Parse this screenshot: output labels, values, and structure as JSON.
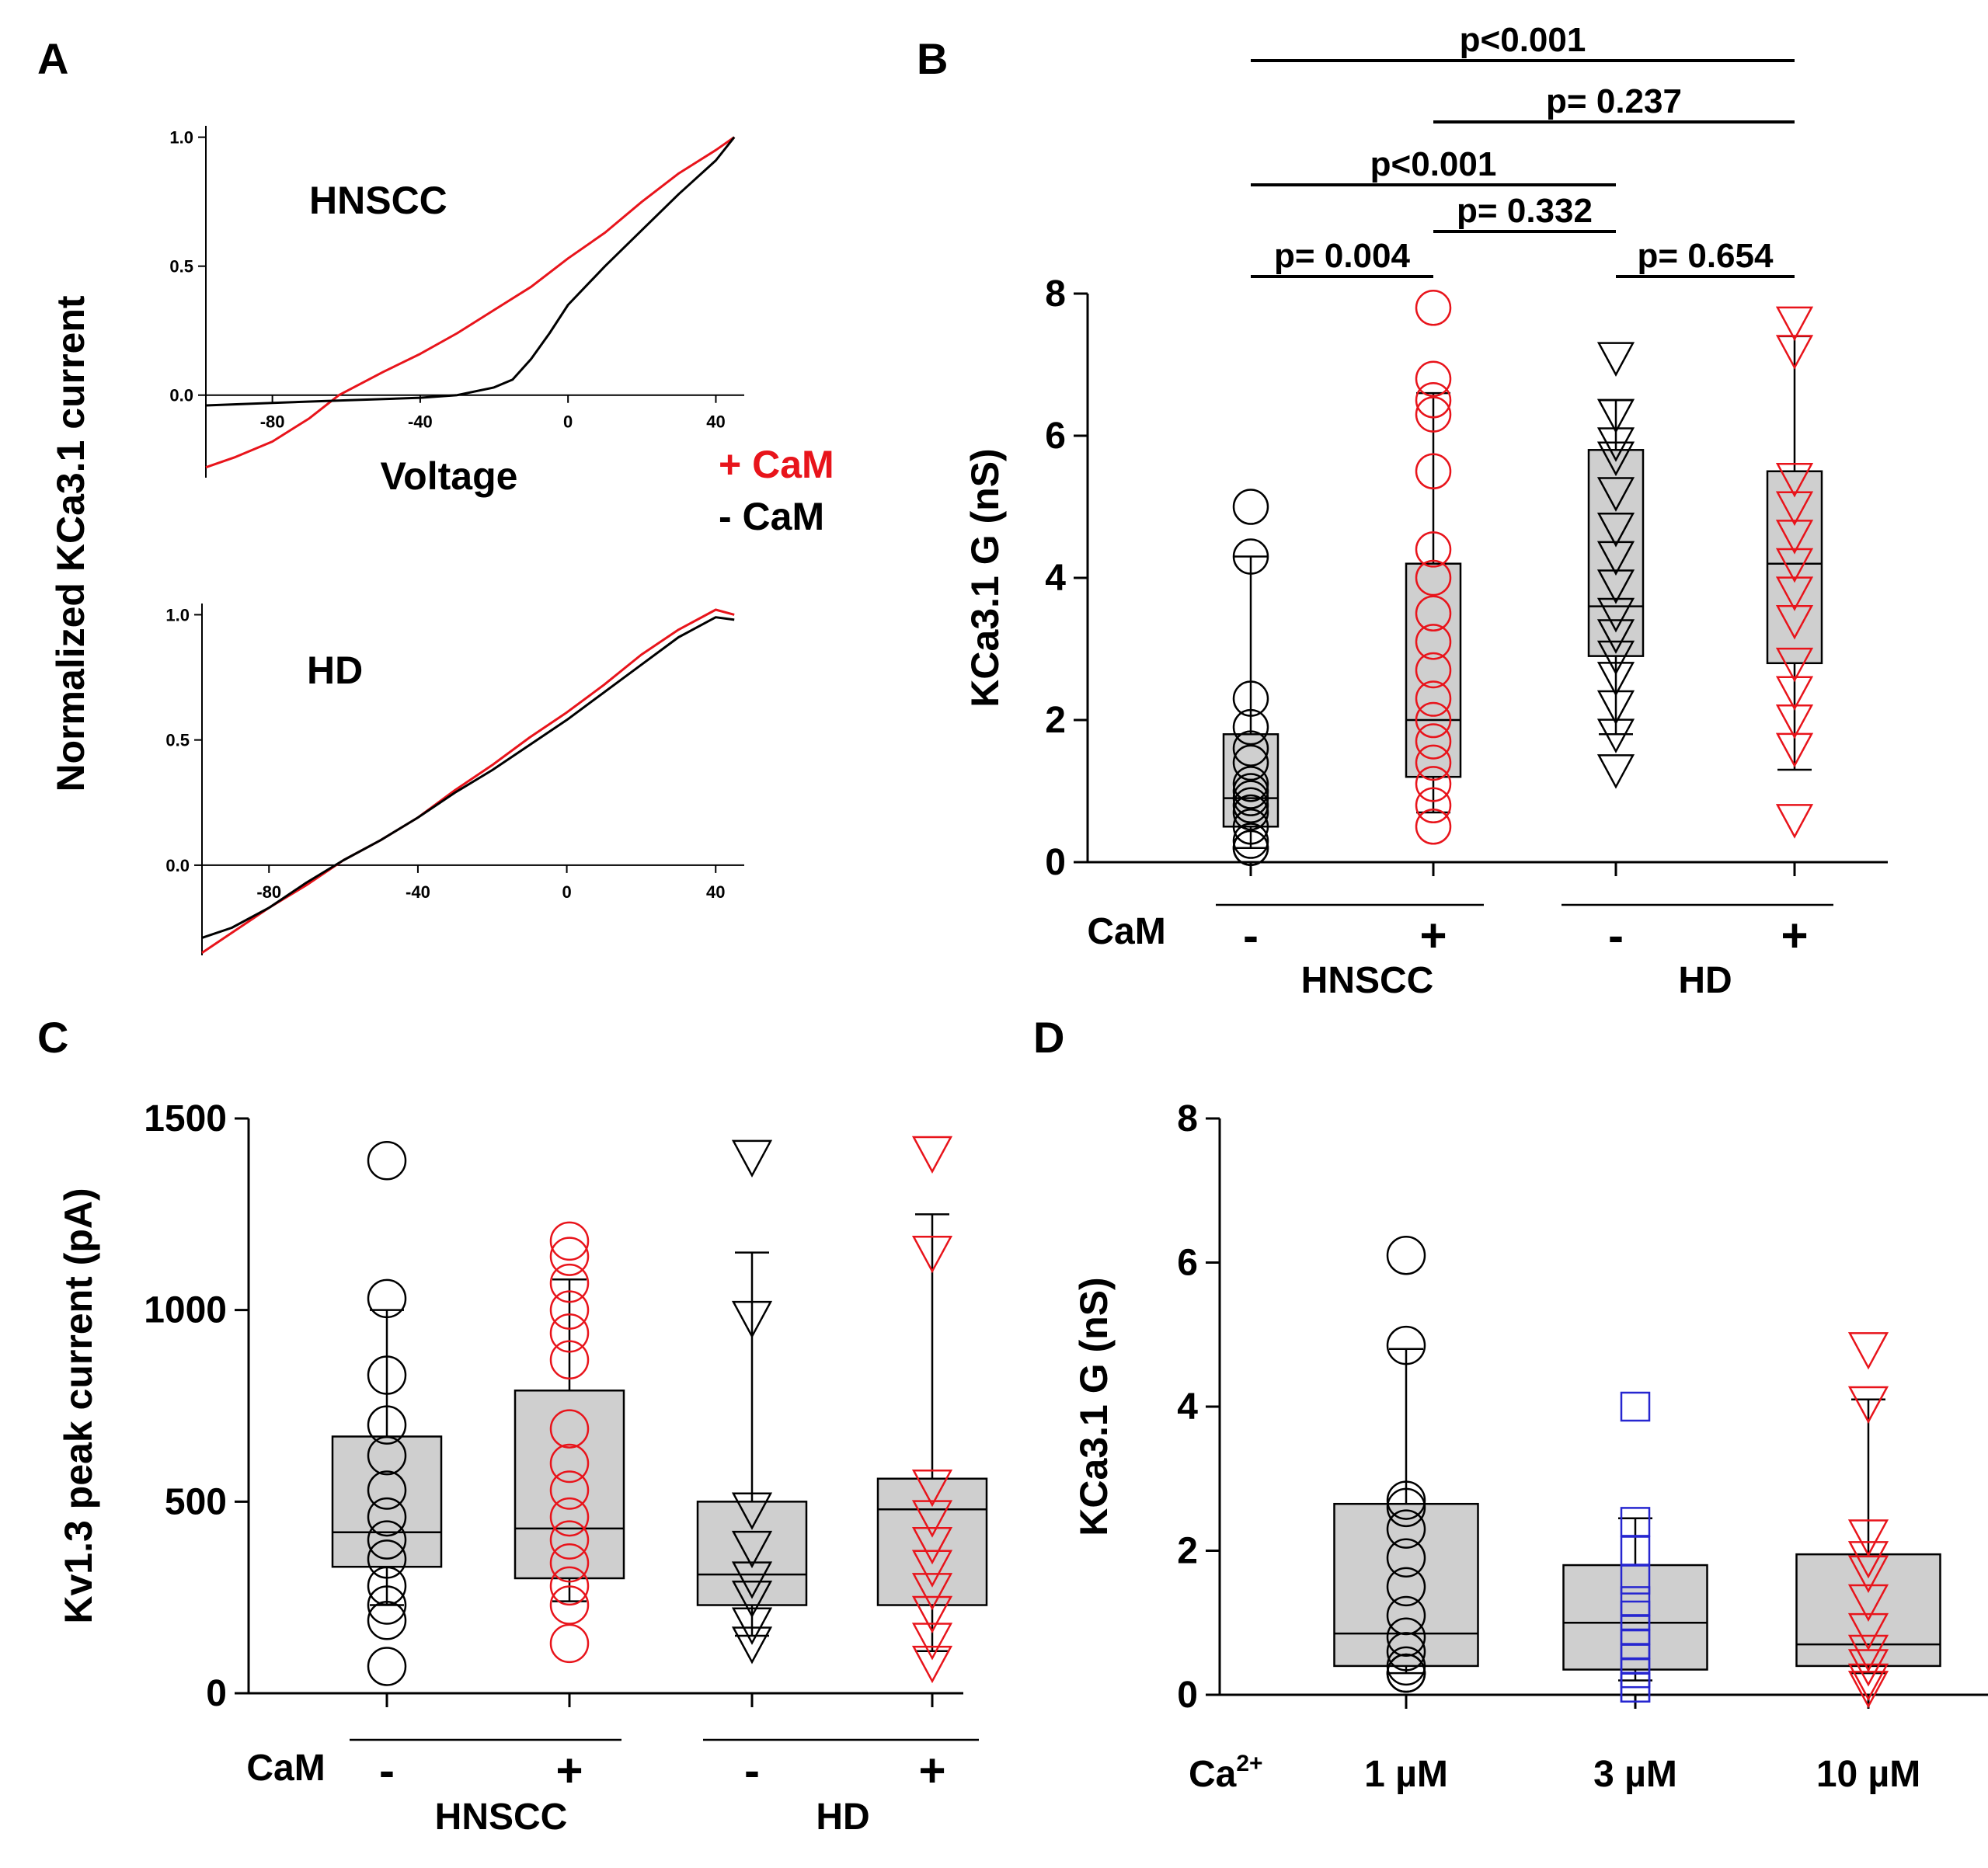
{
  "colors": {
    "red": "#e8141b",
    "black": "#000000",
    "blue": "#2626d0",
    "box_fill": "#cfcfcf"
  },
  "panel_letters": {
    "a": "A",
    "b": "B",
    "c": "C",
    "d": "D"
  },
  "panel_a": {
    "y_label": "Normalized KCa3.1 current",
    "x_label": "Voltage",
    "legend": {
      "plus_cam": "+ CaM",
      "minus_cam": "- CaM"
    }
  },
  "chart_data": [
    {
      "id": "A-top",
      "type": "line",
      "title": "HNSCC",
      "xlabel": "Voltage",
      "ylabel": "Normalized KCa3.1 current",
      "xlim": [
        -98,
        46
      ],
      "ylim": [
        -0.32,
        1.02
      ],
      "x_ticks": [
        "-80",
        "-40",
        "0",
        "40"
      ],
      "y_ticks": [
        "0.0",
        "0.5",
        "1.0"
      ],
      "series": [
        {
          "name": "+ CaM",
          "color": "red",
          "x": [
            -98,
            -90,
            -80,
            -70,
            -62,
            -50,
            -40,
            -30,
            -20,
            -10,
            0,
            10,
            20,
            30,
            40,
            45
          ],
          "y": [
            -0.28,
            -0.24,
            -0.18,
            -0.09,
            0.0,
            0.09,
            0.16,
            0.24,
            0.33,
            0.42,
            0.53,
            0.63,
            0.75,
            0.86,
            0.95,
            1.0
          ]
        },
        {
          "name": "- CaM",
          "color": "black",
          "x": [
            -98,
            -80,
            -60,
            -40,
            -30,
            -20,
            -15,
            -10,
            -5,
            0,
            10,
            20,
            30,
            40,
            45
          ],
          "y": [
            -0.04,
            -0.03,
            -0.02,
            -0.01,
            0.0,
            0.03,
            0.06,
            0.14,
            0.24,
            0.35,
            0.5,
            0.64,
            0.78,
            0.91,
            1.0
          ]
        }
      ]
    },
    {
      "id": "A-bottom",
      "type": "line",
      "title": "HD",
      "xlabel": "Voltage",
      "ylabel": "Normalized KCa3.1 current",
      "xlim": [
        -98,
        46
      ],
      "ylim": [
        -0.36,
        1.02
      ],
      "x_ticks": [
        "-80",
        "-40",
        "0",
        "40"
      ],
      "y_ticks": [
        "0.0",
        "0.5",
        "1.0"
      ],
      "series": [
        {
          "name": "+ CaM",
          "color": "red",
          "x": [
            -98,
            -90,
            -80,
            -70,
            -60,
            -50,
            -40,
            -30,
            -20,
            -10,
            0,
            10,
            20,
            30,
            40,
            45
          ],
          "y": [
            -0.35,
            -0.27,
            -0.17,
            -0.08,
            0.02,
            0.1,
            0.19,
            0.3,
            0.4,
            0.51,
            0.61,
            0.72,
            0.84,
            0.94,
            1.02,
            1.0
          ]
        },
        {
          "name": "- CaM",
          "color": "black",
          "x": [
            -98,
            -90,
            -80,
            -70,
            -60,
            -50,
            -40,
            -30,
            -20,
            -10,
            0,
            10,
            20,
            30,
            40,
            45
          ],
          "y": [
            -0.29,
            -0.25,
            -0.17,
            -0.07,
            0.02,
            0.1,
            0.19,
            0.29,
            0.38,
            0.48,
            0.58,
            0.69,
            0.8,
            0.91,
            0.99,
            0.98
          ]
        }
      ]
    },
    {
      "id": "B",
      "type": "box",
      "ylabel": "KCa3.1 G (nS)",
      "ylim": [
        0,
        8
      ],
      "y_ticks": [
        "0",
        "2",
        "4",
        "6",
        "8"
      ],
      "row_label": "CaM",
      "group_labels": [
        "HNSCC",
        "HD"
      ],
      "categories": [
        "-",
        "+",
        "-",
        "+"
      ],
      "series": [
        {
          "name": "HNSCC - CaM",
          "color": "black",
          "marker": "circle",
          "min": 0.2,
          "q1": 0.5,
          "median": 0.9,
          "q3": 1.8,
          "max": 4.3,
          "points": [
            5.0,
            4.3,
            2.3,
            1.9,
            1.6,
            1.4,
            1.1,
            1.0,
            0.9,
            0.8,
            0.7,
            0.5,
            0.3,
            0.2,
            0.2
          ]
        },
        {
          "name": "HNSCC + CaM",
          "color": "red",
          "marker": "circle",
          "min": 0.7,
          "q1": 1.2,
          "median": 2.0,
          "q3": 4.2,
          "max": 6.6,
          "points": [
            7.8,
            6.8,
            6.5,
            6.3,
            5.5,
            4.4,
            4.0,
            3.5,
            3.1,
            2.7,
            2.3,
            2.0,
            1.7,
            1.4,
            1.1,
            0.8,
            0.5
          ]
        },
        {
          "name": "HD - CaM",
          "color": "black",
          "marker": "triangle",
          "min": 1.8,
          "q1": 2.9,
          "median": 3.6,
          "q3": 5.8,
          "max": 6.5,
          "points": [
            7.1,
            6.3,
            5.9,
            5.7,
            5.2,
            4.7,
            4.3,
            3.9,
            3.5,
            3.2,
            2.9,
            2.6,
            2.2,
            1.8,
            1.3
          ]
        },
        {
          "name": "HD + CaM",
          "color": "red",
          "marker": "triangle",
          "min": 1.3,
          "q1": 2.8,
          "median": 4.2,
          "q3": 5.5,
          "max": 7.4,
          "points": [
            7.6,
            7.2,
            5.4,
            5.0,
            4.6,
            4.2,
            3.8,
            3.4,
            2.8,
            2.4,
            2.0,
            1.6,
            0.6
          ]
        }
      ],
      "annotations": [
        {
          "text": "p<0.001",
          "from": 0,
          "to": 3
        },
        {
          "text": "p= 0.237",
          "from": 1,
          "to": 3
        },
        {
          "text": "p<0.001",
          "from": 0,
          "to": 2
        },
        {
          "text": "p= 0.332",
          "from": 1,
          "to": 2
        },
        {
          "text": "p= 0.004",
          "from": 0,
          "to": 1
        },
        {
          "text": "p= 0.654",
          "from": 2,
          "to": 3
        }
      ]
    },
    {
      "id": "C",
      "type": "box",
      "ylabel": "Kv1.3 peak current (pA)",
      "ylim": [
        0,
        1500
      ],
      "y_ticks": [
        "0",
        "500",
        "1000",
        "1500"
      ],
      "row_label": "CaM",
      "group_labels": [
        "HNSCC",
        "HD"
      ],
      "categories": [
        "-",
        "+",
        "-",
        "+"
      ],
      "series": [
        {
          "name": "HNSCC - CaM",
          "color": "black",
          "marker": "circle",
          "min": 230,
          "q1": 330,
          "median": 420,
          "q3": 670,
          "max": 1000,
          "points": [
            1390,
            1030,
            830,
            700,
            620,
            530,
            460,
            400,
            350,
            280,
            230,
            190,
            70
          ]
        },
        {
          "name": "HNSCC + CaM",
          "color": "red",
          "marker": "circle",
          "min": 240,
          "q1": 300,
          "median": 430,
          "q3": 790,
          "max": 1080,
          "points": [
            1180,
            1140,
            1070,
            1000,
            940,
            870,
            690,
            600,
            530,
            460,
            400,
            340,
            280,
            230,
            130
          ]
        },
        {
          "name": "HD - CaM",
          "color": "black",
          "marker": "triangle",
          "min": 150,
          "q1": 230,
          "median": 310,
          "q3": 500,
          "max": 1150,
          "points": [
            1400,
            980,
            480,
            380,
            300,
            250,
            180,
            130
          ]
        },
        {
          "name": "HD + CaM",
          "color": "red",
          "marker": "triangle",
          "min": 110,
          "q1": 230,
          "median": 480,
          "q3": 560,
          "max": 1250,
          "points": [
            1410,
            1150,
            540,
            460,
            390,
            330,
            270,
            210,
            140,
            80
          ]
        }
      ]
    },
    {
      "id": "D",
      "type": "box",
      "ylabel": "KCa3.1 G (nS)",
      "ylim": [
        0,
        8
      ],
      "y_ticks": [
        "0",
        "2",
        "4",
        "6",
        "8"
      ],
      "row_label_main": "Ca",
      "row_label_sup": "2+",
      "categories": [
        "1 µM",
        "3 µM",
        "10 µM"
      ],
      "series": [
        {
          "name": "1 µM",
          "color": "black",
          "marker": "circle",
          "min": 0.3,
          "q1": 0.4,
          "median": 0.85,
          "q3": 2.65,
          "max": 4.8,
          "points": [
            6.1,
            4.85,
            2.7,
            2.6,
            2.3,
            1.9,
            1.5,
            1.1,
            0.8,
            0.6,
            0.4,
            0.3,
            0.3,
            0.3
          ]
        },
        {
          "name": "3 µM",
          "color": "blue",
          "marker": "square",
          "min": 0.2,
          "q1": 0.35,
          "median": 1.0,
          "q3": 1.8,
          "max": 2.45,
          "points": [
            4.0,
            2.4,
            2.0,
            1.6,
            1.3,
            1.1,
            0.9,
            0.7,
            0.5,
            0.3,
            0.1,
            0.1
          ]
        },
        {
          "name": "10 µM",
          "color": "red",
          "marker": "triangle",
          "min": 0.3,
          "q1": 0.4,
          "median": 0.7,
          "q3": 1.95,
          "max": 4.1,
          "points": [
            4.8,
            4.05,
            2.2,
            1.9,
            1.7,
            1.3,
            0.9,
            0.6,
            0.4,
            0.2,
            0.1
          ]
        }
      ]
    }
  ]
}
